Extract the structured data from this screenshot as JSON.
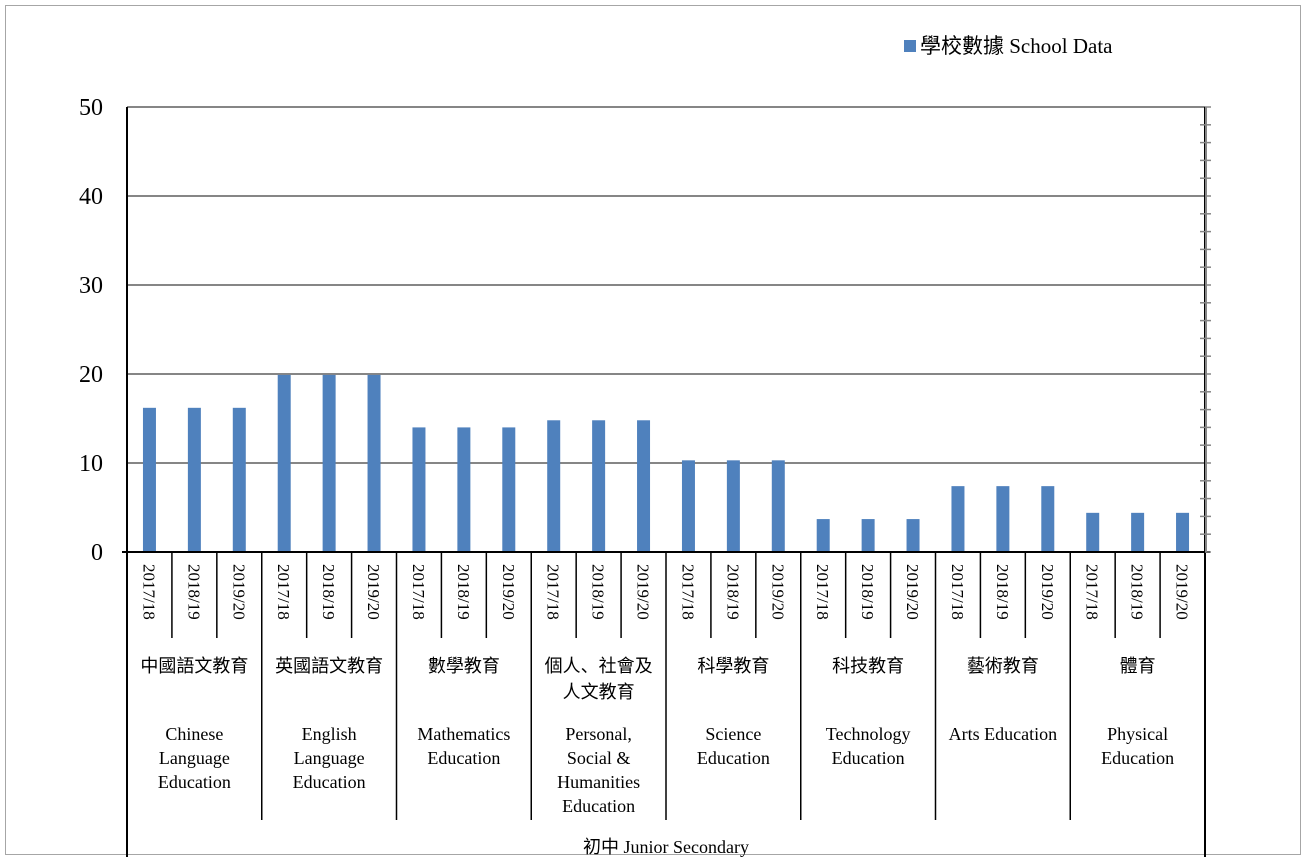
{
  "chart_data": {
    "type": "bar",
    "legend_position": "top-right",
    "grid": true,
    "ylim": [
      0,
      50
    ],
    "y_ticks": [
      "0",
      "10",
      "20",
      "30",
      "40",
      "50"
    ],
    "series": [
      {
        "name": "學校數據 School Data",
        "color": "#4f81bd",
        "values": [
          16.2,
          16.2,
          16.2,
          19.9,
          19.9,
          19.9,
          14.0,
          14.0,
          14.0,
          14.8,
          14.8,
          14.8,
          10.3,
          10.3,
          10.3,
          3.7,
          3.7,
          3.7,
          7.4,
          7.4,
          7.4,
          4.4,
          4.4,
          4.4
        ]
      }
    ],
    "groups": [
      {
        "zh": "中國語文教育",
        "en": [
          "Chinese",
          "Language",
          "Education"
        ],
        "years": [
          "2017/18",
          "2018/19",
          "2019/20"
        ]
      },
      {
        "zh": "英國語文教育",
        "en": [
          "English",
          "Language",
          "Education"
        ],
        "years": [
          "2017/18",
          "2018/19",
          "2019/20"
        ]
      },
      {
        "zh": "數學教育",
        "en": [
          "Mathematics",
          "Education"
        ],
        "years": [
          "2017/18",
          "2018/19",
          "2019/20"
        ]
      },
      {
        "zh": [
          "個人、社會及",
          "人文教育"
        ],
        "en": [
          "Personal,",
          "Social &",
          "Humanities",
          "Education"
        ],
        "years": [
          "2017/18",
          "2018/19",
          "2019/20"
        ]
      },
      {
        "zh": "科學教育",
        "en": [
          "Science",
          "Education"
        ],
        "years": [
          "2017/18",
          "2018/19",
          "2019/20"
        ]
      },
      {
        "zh": "科技教育",
        "en": [
          "Technology",
          "Education"
        ],
        "years": [
          "2017/18",
          "2018/19",
          "2019/20"
        ]
      },
      {
        "zh": "藝術教育",
        "en": [
          "Arts Education"
        ],
        "years": [
          "2017/18",
          "2018/19",
          "2019/20"
        ]
      },
      {
        "zh": "體育",
        "en": [
          "Physical",
          "Education"
        ],
        "years": [
          "2017/18",
          "2018/19",
          "2019/20"
        ]
      }
    ],
    "level_label": "初中 Junior Secondary"
  }
}
